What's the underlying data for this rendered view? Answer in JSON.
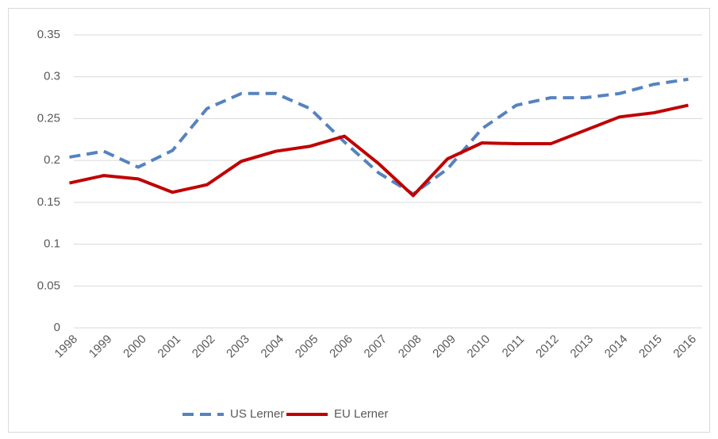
{
  "chart_data": {
    "type": "line",
    "categories": [
      "1998",
      "1999",
      "2000",
      "2001",
      "2002",
      "2003",
      "2004",
      "2005",
      "2006",
      "2007",
      "2008",
      "2009",
      "2010",
      "2011",
      "2012",
      "2013",
      "2014",
      "2015",
      "2016"
    ],
    "series": [
      {
        "name": "US Lerner",
        "color": "#5683bf",
        "line_style": "dashed",
        "values": [
          0.204,
          0.211,
          0.192,
          0.212,
          0.262,
          0.28,
          0.28,
          0.262,
          0.222,
          0.185,
          0.16,
          0.19,
          0.238,
          0.266,
          0.275,
          0.275,
          0.28,
          0.291,
          0.297
        ]
      },
      {
        "name": "EU Lerner",
        "color": "#c00000",
        "line_style": "solid",
        "values": [
          0.173,
          0.182,
          0.178,
          0.162,
          0.171,
          0.199,
          0.211,
          0.217,
          0.229,
          0.196,
          0.158,
          0.202,
          0.221,
          0.22,
          0.22,
          0.236,
          0.252,
          0.257,
          0.266
        ]
      }
    ],
    "ylim": [
      0,
      0.35
    ],
    "yticks": [
      0,
      0.05,
      0.1,
      0.15,
      0.2,
      0.25,
      0.3,
      0.35
    ],
    "grid": true,
    "legend": "bottom"
  }
}
